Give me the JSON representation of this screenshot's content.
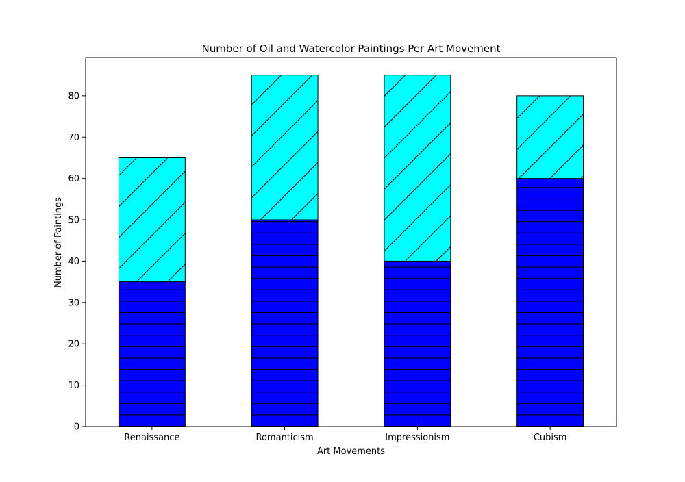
{
  "chart_data": {
    "type": "bar",
    "stacked": true,
    "title": "Number of Oil and Watercolor Paintings Per Art Movement",
    "xlabel": "Art Movements",
    "ylabel": "Number of Paintings",
    "categories": [
      "Renaissance",
      "Romanticism",
      "Impressionism",
      "Cubism"
    ],
    "series": [
      {
        "values": [
          35,
          50,
          40,
          60
        ],
        "color": "#0000ff",
        "hatch": "horizontal"
      },
      {
        "values": [
          30,
          35,
          45,
          20
        ],
        "color": "#00ffff",
        "hatch": "diagonal"
      }
    ],
    "ylim": [
      0,
      89.25
    ],
    "yticks": [
      0,
      10,
      20,
      30,
      40,
      50,
      60,
      70,
      80
    ],
    "grid": false,
    "legend": "none"
  }
}
